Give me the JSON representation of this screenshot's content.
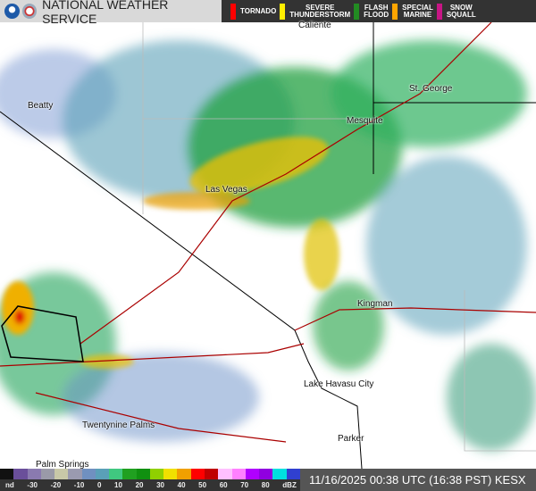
{
  "header": {
    "title": "NATIONAL WEATHER SERVICE",
    "logos": [
      "noaa-logo",
      "nws-logo"
    ],
    "warnings": [
      {
        "label": "TORNADO",
        "color": "#ff0000"
      },
      {
        "label": "SEVERE\nTHUNDERSTORM",
        "color": "#ffee00"
      },
      {
        "label": "FLASH\nFLOOD",
        "color": "#228b22"
      },
      {
        "label": "SPECIAL\nMARINE",
        "color": "#ffa500"
      },
      {
        "label": "SNOW\nSQUALL",
        "color": "#c71585"
      }
    ]
  },
  "map": {
    "places": [
      "Caliente",
      "Beatty",
      "St. George",
      "Mesquite",
      "Las Vegas",
      "Kingman",
      "Lake Havasu City",
      "Twentynine Palms",
      "Parker",
      "Palm Springs"
    ]
  },
  "scale": {
    "ticks": [
      "nd",
      "-30",
      "-20",
      "-10",
      "0",
      "10",
      "20",
      "30",
      "40",
      "50",
      "60",
      "70",
      "80",
      "dBZ"
    ],
    "colors": [
      "#111",
      "#6a4f9a",
      "#8a7ab0",
      "#9a9aa8",
      "#c8c8a8",
      "#9a9ab0",
      "#7090c0",
      "#5aa0b8",
      "#40c880",
      "#20a020",
      "#109010",
      "#90d000",
      "#f0e000",
      "#f0a000",
      "#ff0000",
      "#c00000",
      "#ffc0ff",
      "#ff80ff",
      "#b000ff",
      "#9000e0",
      "#00e0e0",
      "#3040d0"
    ]
  },
  "footer": {
    "timestamp": "11/16/2025 00:38 UTC (16:38 PST) KESX"
  }
}
